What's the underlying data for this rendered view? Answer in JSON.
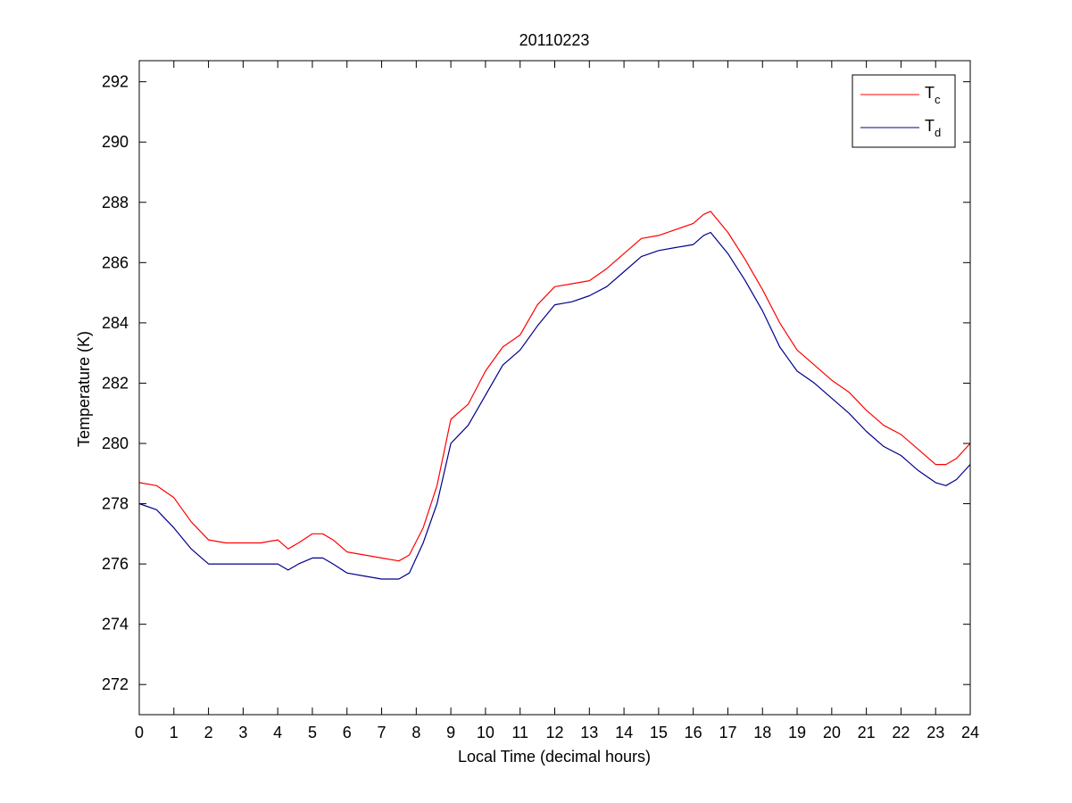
{
  "chart_data": {
    "type": "line",
    "title": "20110223",
    "xlabel": "Local Time (decimal hours)",
    "ylabel": "Temperature (K)",
    "xlim": [
      0,
      24
    ],
    "ylim": [
      271,
      292.7
    ],
    "xticks": [
      0,
      1,
      2,
      3,
      4,
      5,
      6,
      7,
      8,
      9,
      10,
      11,
      12,
      13,
      14,
      15,
      16,
      17,
      18,
      19,
      20,
      21,
      22,
      23,
      24
    ],
    "yticks": [
      272,
      274,
      276,
      278,
      280,
      282,
      284,
      286,
      288,
      290,
      292
    ],
    "grid": false,
    "legend_position": "top-right",
    "series": [
      {
        "name": "T",
        "subscript": "c",
        "color": "#ff0000",
        "x": [
          0,
          0.5,
          1,
          1.5,
          2,
          2.5,
          3,
          3.5,
          4,
          4.3,
          4.6,
          5,
          5.3,
          5.6,
          6,
          6.5,
          7,
          7.5,
          7.8,
          8.2,
          8.6,
          9,
          9.5,
          10,
          10.5,
          11,
          11.5,
          12,
          12.5,
          13,
          13.5,
          14,
          14.5,
          15,
          15.5,
          16,
          16.3,
          16.5,
          17,
          17.5,
          18,
          18.5,
          19,
          19.5,
          20,
          20.5,
          21,
          21.5,
          22,
          22.5,
          23,
          23.3,
          23.6,
          24
        ],
        "y": [
          278.7,
          278.6,
          278.2,
          277.4,
          276.8,
          276.7,
          276.7,
          276.7,
          276.8,
          276.5,
          276.7,
          277,
          277,
          276.8,
          276.4,
          276.3,
          276.2,
          276.1,
          276.3,
          277.2,
          278.6,
          280.8,
          281.3,
          282.4,
          283.2,
          283.6,
          284.6,
          285.2,
          285.3,
          285.4,
          285.8,
          286.3,
          286.8,
          286.9,
          287.1,
          287.3,
          287.6,
          287.7,
          287,
          286.1,
          285.1,
          284,
          283.1,
          282.6,
          282.1,
          281.7,
          281.1,
          280.6,
          280.3,
          279.8,
          279.3,
          279.3,
          279.5,
          280
        ]
      },
      {
        "name": "T",
        "subscript": "d",
        "color": "#00008b",
        "x": [
          0,
          0.5,
          1,
          1.5,
          2,
          2.5,
          3,
          3.5,
          4,
          4.3,
          4.6,
          5,
          5.3,
          5.6,
          6,
          6.5,
          7,
          7.5,
          7.8,
          8.2,
          8.6,
          9,
          9.5,
          10,
          10.5,
          11,
          11.5,
          12,
          12.5,
          13,
          13.5,
          14,
          14.5,
          15,
          15.5,
          16,
          16.3,
          16.5,
          17,
          17.5,
          18,
          18.5,
          19,
          19.5,
          20,
          20.5,
          21,
          21.5,
          22,
          22.5,
          23,
          23.3,
          23.6,
          24
        ],
        "y": [
          278,
          277.8,
          277.2,
          276.5,
          276,
          276,
          276,
          276,
          276,
          275.8,
          276,
          276.2,
          276.2,
          276,
          275.7,
          275.6,
          275.5,
          275.5,
          275.7,
          276.7,
          278,
          280,
          280.6,
          281.6,
          282.6,
          283.1,
          283.9,
          284.6,
          284.7,
          284.9,
          285.2,
          285.7,
          286.2,
          286.4,
          286.5,
          286.6,
          286.9,
          287,
          286.3,
          285.4,
          284.4,
          283.2,
          282.4,
          282,
          281.5,
          281,
          280.4,
          279.9,
          279.6,
          279.1,
          278.7,
          278.6,
          278.8,
          279.3
        ]
      }
    ]
  }
}
